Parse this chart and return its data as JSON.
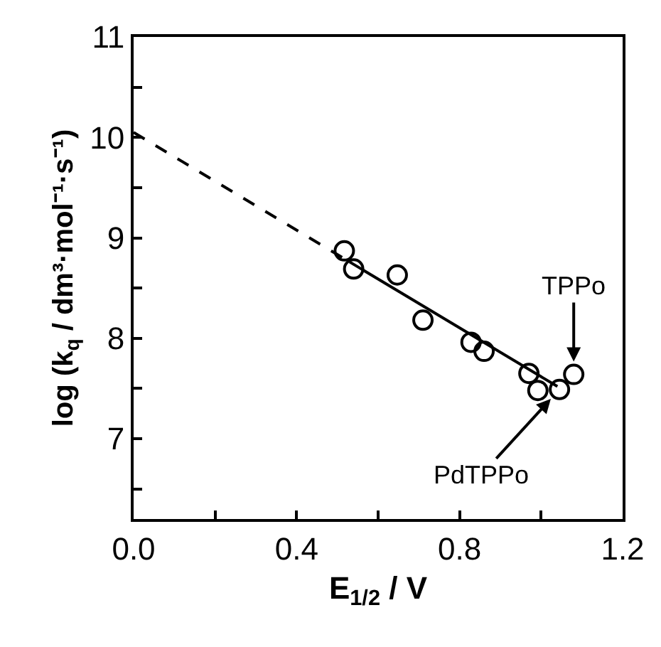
{
  "chart_data": {
    "type": "scatter",
    "xlabel": "E$_{1/2}$ / V",
    "ylabel": "log (k$_{q}$ / dm³·mol⁻¹·s⁻¹)",
    "xlim": [
      0,
      1.2
    ],
    "ylim": [
      6.2,
      11
    ],
    "xticks": [
      {
        "value": 0,
        "label": "0.0"
      },
      {
        "value": 0.2,
        "label": null
      },
      {
        "value": 0.4,
        "label": "0.4"
      },
      {
        "value": 0.6,
        "label": null
      },
      {
        "value": 0.8,
        "label": "0.8"
      },
      {
        "value": 1.0,
        "label": null
      },
      {
        "value": 1.2,
        "label": "1.2"
      }
    ],
    "yticks": [
      {
        "value": 6.5,
        "label": null
      },
      7,
      {
        "value": 7.5,
        "label": null
      },
      8,
      {
        "value": 8.5,
        "label": null
      },
      9,
      {
        "value": 9.5,
        "label": null
      },
      10,
      {
        "value": 10.5,
        "label": null
      },
      11
    ],
    "series": [
      {
        "marker": "circle",
        "color": "#000000",
        "x": [
          0.517,
          0.54,
          0.647,
          0.71,
          0.828,
          0.86,
          0.97,
          0.992,
          1.045,
          1.08
        ],
        "values": [
          8.87,
          8.69,
          8.63,
          8.18,
          7.96,
          7.87,
          7.65,
          7.48,
          7.49,
          7.64
        ]
      },
      {
        "type": "line",
        "line_style": "dashed",
        "marker": "none",
        "color": "#000000",
        "x": [
          0,
          0.53
        ],
        "values": [
          10.05,
          8.76
        ]
      },
      {
        "type": "line",
        "line_style": "solid",
        "marker": "none",
        "color": "#000000",
        "x": [
          0.53,
          1.04
        ],
        "values": [
          8.76,
          7.52
        ]
      }
    ],
    "annotations": [
      {
        "text": "TPPo",
        "x": 1.08,
        "y": 7.64
      },
      {
        "text": "PdTPPo",
        "x": 1.045,
        "y": 7.49
      }
    ]
  }
}
